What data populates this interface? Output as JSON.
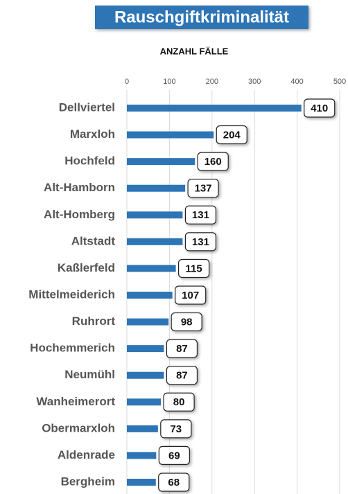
{
  "chart_data": {
    "type": "bar",
    "orientation": "horizontal",
    "title": "Rauschgiftkriminalität",
    "subtitle": "ANZAHL FÄLLE",
    "categories": [
      "Dellviertel",
      "Marxloh",
      "Hochfeld",
      "Alt-Hamborn",
      "Alt-Homberg",
      "Altstadt",
      "Kaßlerfeld",
      "Mittelmeiderich",
      "Ruhrort",
      "Hochemmerich",
      "Neumühl",
      "Wanheimerort",
      "Obermarxloh",
      "Aldenrade",
      "Bergheim"
    ],
    "values": [
      410,
      204,
      160,
      137,
      131,
      131,
      115,
      107,
      98,
      87,
      87,
      80,
      73,
      69,
      68
    ],
    "color": "#2e75b6",
    "xlim": [
      0,
      500
    ],
    "xticks": [
      0,
      100,
      200,
      300,
      400,
      500
    ],
    "grid": true
  }
}
